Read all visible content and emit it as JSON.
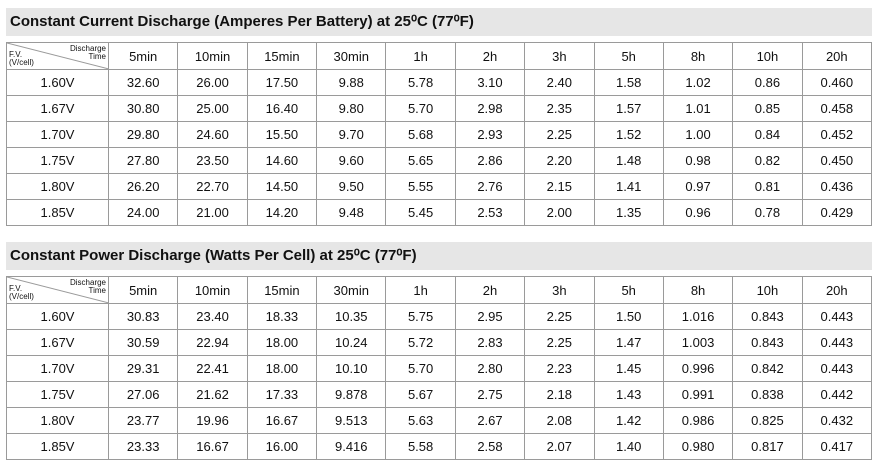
{
  "tables": [
    {
      "title": "Constant Current Discharge (Amperes Per Battery) at 25⁰C (77⁰F)",
      "corner": {
        "row_label": "F.V. (V/cell)",
        "col_label": "Discharge Time"
      },
      "columns": [
        "5min",
        "10min",
        "15min",
        "30min",
        "1h",
        "2h",
        "3h",
        "5h",
        "8h",
        "10h",
        "20h"
      ],
      "rows": [
        {
          "label": "1.60V",
          "cells": [
            "32.60",
            "26.00",
            "17.50",
            "9.88",
            "5.78",
            "3.10",
            "2.40",
            "1.58",
            "1.02",
            "0.86",
            "0.460"
          ]
        },
        {
          "label": "1.67V",
          "cells": [
            "30.80",
            "25.00",
            "16.40",
            "9.80",
            "5.70",
            "2.98",
            "2.35",
            "1.57",
            "1.01",
            "0.85",
            "0.458"
          ]
        },
        {
          "label": "1.70V",
          "cells": [
            "29.80",
            "24.60",
            "15.50",
            "9.70",
            "5.68",
            "2.93",
            "2.25",
            "1.52",
            "1.00",
            "0.84",
            "0.452"
          ]
        },
        {
          "label": "1.75V",
          "cells": [
            "27.80",
            "23.50",
            "14.60",
            "9.60",
            "5.65",
            "2.86",
            "2.20",
            "1.48",
            "0.98",
            "0.82",
            "0.450"
          ]
        },
        {
          "label": "1.80V",
          "cells": [
            "26.20",
            "22.70",
            "14.50",
            "9.50",
            "5.55",
            "2.76",
            "2.15",
            "1.41",
            "0.97",
            "0.81",
            "0.436"
          ]
        },
        {
          "label": "1.85V",
          "cells": [
            "24.00",
            "21.00",
            "14.20",
            "9.48",
            "5.45",
            "2.53",
            "2.00",
            "1.35",
            "0.96",
            "0.78",
            "0.429"
          ]
        }
      ]
    },
    {
      "title": "Constant Power Discharge (Watts Per Cell) at 25⁰C (77⁰F)",
      "corner": {
        "row_label": "F.V. (V/cell)",
        "col_label": "Discharge Time"
      },
      "columns": [
        "5min",
        "10min",
        "15min",
        "30min",
        "1h",
        "2h",
        "3h",
        "5h",
        "8h",
        "10h",
        "20h"
      ],
      "rows": [
        {
          "label": "1.60V",
          "cells": [
            "30.83",
            "23.40",
            "18.33",
            "10.35",
            "5.75",
            "2.95",
            "2.25",
            "1.50",
            "1.016",
            "0.843",
            "0.443"
          ]
        },
        {
          "label": "1.67V",
          "cells": [
            "30.59",
            "22.94",
            "18.00",
            "10.24",
            "5.72",
            "2.83",
            "2.25",
            "1.47",
            "1.003",
            "0.843",
            "0.443"
          ]
        },
        {
          "label": "1.70V",
          "cells": [
            "29.31",
            "22.41",
            "18.00",
            "10.10",
            "5.70",
            "2.80",
            "2.23",
            "1.45",
            "0.996",
            "0.842",
            "0.443"
          ]
        },
        {
          "label": "1.75V",
          "cells": [
            "27.06",
            "21.62",
            "17.33",
            "9.878",
            "5.67",
            "2.75",
            "2.18",
            "1.43",
            "0.991",
            "0.838",
            "0.442"
          ]
        },
        {
          "label": "1.80V",
          "cells": [
            "23.77",
            "19.96",
            "16.67",
            "9.513",
            "5.63",
            "2.67",
            "2.08",
            "1.42",
            "0.986",
            "0.825",
            "0.432"
          ]
        },
        {
          "label": "1.85V",
          "cells": [
            "23.33",
            "16.67",
            "16.00",
            "9.416",
            "5.58",
            "2.58",
            "2.07",
            "1.40",
            "0.980",
            "0.817",
            "0.417"
          ]
        }
      ]
    }
  ]
}
